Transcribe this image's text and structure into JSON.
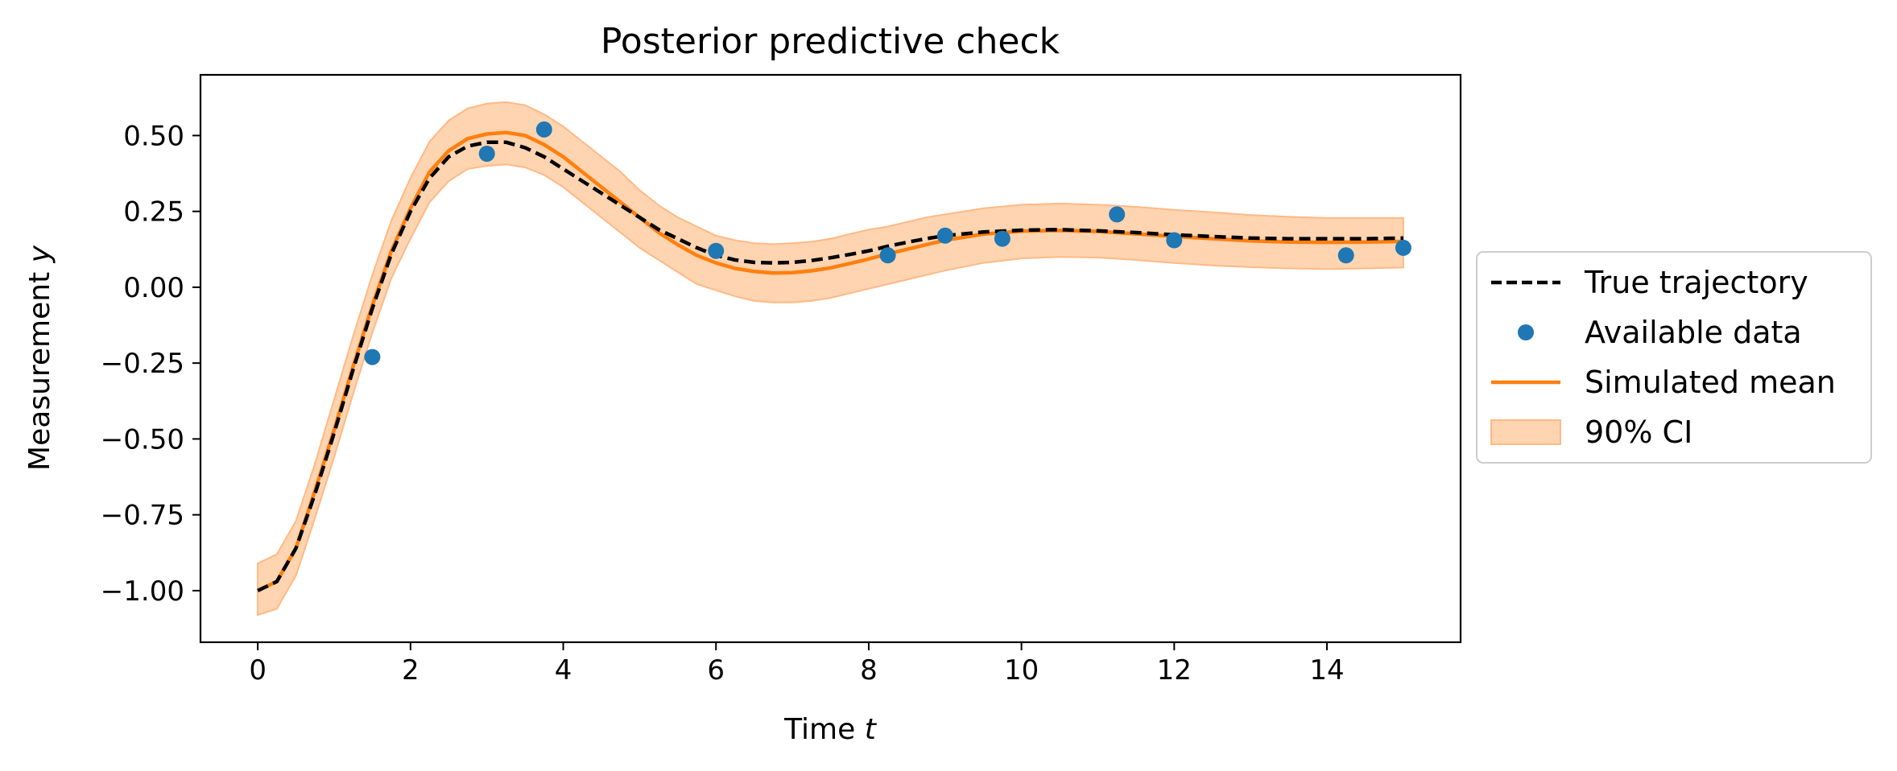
{
  "chart_data": {
    "type": "line",
    "title": "Posterior predictive check",
    "xlabel": {
      "text": "Time ",
      "var": "t"
    },
    "ylabel": {
      "text": "Measurement ",
      "var": "y"
    },
    "xlim": [
      -0.75,
      15.75
    ],
    "ylim": [
      -1.17,
      0.7
    ],
    "xticks": [
      0,
      2,
      4,
      6,
      8,
      10,
      12,
      14
    ],
    "xtick_labels": [
      "0",
      "2",
      "4",
      "6",
      "8",
      "10",
      "12",
      "14"
    ],
    "yticks": [
      0.5,
      0.25,
      0.0,
      -0.25,
      -0.5,
      -0.75,
      -1.0
    ],
    "ytick_labels": [
      "0.50",
      "0.25",
      "0.00",
      "−0.25",
      "−0.50",
      "−0.75",
      "−1.00"
    ],
    "grid": false,
    "legend_position": "right-outside",
    "colors": {
      "true": "#000000",
      "data": "#1f77b4",
      "mean": "#ff7f0e",
      "band_fill": "#ffd4b0",
      "band_edge": "#ffb985"
    },
    "series": [
      {
        "name": "True trajectory",
        "kind": "dashed-line",
        "x": [
          0,
          0.25,
          0.5,
          0.75,
          1,
          1.25,
          1.5,
          1.75,
          2,
          2.25,
          2.5,
          2.75,
          3,
          3.25,
          3.5,
          3.75,
          4,
          4.25,
          4.5,
          4.75,
          5,
          5.25,
          5.5,
          5.75,
          6,
          6.25,
          6.5,
          6.75,
          7,
          7.25,
          7.5,
          7.75,
          8,
          8.25,
          8.5,
          8.75,
          9,
          9.5,
          10,
          10.5,
          11,
          11.5,
          12,
          12.5,
          13,
          13.5,
          14,
          14.5,
          15
        ],
        "y": [
          -1.0,
          -0.97,
          -0.86,
          -0.68,
          -0.48,
          -0.27,
          -0.07,
          0.11,
          0.25,
          0.36,
          0.43,
          0.465,
          0.478,
          0.478,
          0.46,
          0.43,
          0.39,
          0.35,
          0.31,
          0.27,
          0.23,
          0.19,
          0.16,
          0.13,
          0.105,
          0.09,
          0.082,
          0.08,
          0.082,
          0.088,
          0.097,
          0.108,
          0.12,
          0.135,
          0.148,
          0.16,
          0.17,
          0.182,
          0.188,
          0.19,
          0.186,
          0.18,
          0.173,
          0.167,
          0.162,
          0.16,
          0.16,
          0.16,
          0.162
        ]
      },
      {
        "name": "Available data",
        "kind": "points",
        "x": [
          1.5,
          3.0,
          3.75,
          6.0,
          8.25,
          9.0,
          9.75,
          11.25,
          12.0,
          14.25,
          15.0
        ],
        "y": [
          -0.23,
          0.44,
          0.52,
          0.12,
          0.105,
          0.17,
          0.16,
          0.24,
          0.155,
          0.105,
          0.13
        ]
      },
      {
        "name": "Simulated mean",
        "kind": "line",
        "x": [
          0,
          0.25,
          0.5,
          0.75,
          1,
          1.25,
          1.5,
          1.75,
          2,
          2.25,
          2.5,
          2.75,
          3,
          3.25,
          3.5,
          3.75,
          4,
          4.25,
          4.5,
          4.75,
          5,
          5.25,
          5.5,
          5.75,
          6,
          6.25,
          6.5,
          6.75,
          7,
          7.25,
          7.5,
          7.75,
          8,
          8.25,
          8.5,
          8.75,
          9,
          9.5,
          10,
          10.5,
          11,
          11.5,
          12,
          12.5,
          13,
          13.5,
          14,
          14.5,
          15
        ],
        "y": [
          -1.0,
          -0.97,
          -0.86,
          -0.67,
          -0.47,
          -0.26,
          -0.06,
          0.12,
          0.26,
          0.38,
          0.45,
          0.49,
          0.505,
          0.51,
          0.5,
          0.47,
          0.43,
          0.38,
          0.33,
          0.28,
          0.23,
          0.18,
          0.14,
          0.105,
          0.08,
          0.062,
          0.052,
          0.047,
          0.048,
          0.054,
          0.064,
          0.078,
          0.093,
          0.11,
          0.125,
          0.14,
          0.155,
          0.175,
          0.185,
          0.187,
          0.184,
          0.176,
          0.168,
          0.16,
          0.153,
          0.149,
          0.148,
          0.149,
          0.151
        ]
      },
      {
        "name": "90% CI",
        "kind": "band",
        "x": [
          0,
          0.25,
          0.5,
          0.75,
          1,
          1.25,
          1.5,
          1.75,
          2,
          2.25,
          2.5,
          2.75,
          3,
          3.25,
          3.5,
          3.75,
          4,
          4.25,
          4.5,
          4.75,
          5,
          5.25,
          5.5,
          5.75,
          6,
          6.25,
          6.5,
          6.75,
          7,
          7.25,
          7.5,
          7.75,
          8,
          8.25,
          8.5,
          8.75,
          9,
          9.5,
          10,
          10.5,
          11,
          11.5,
          12,
          12.5,
          13,
          13.5,
          14,
          14.5,
          15
        ],
        "upper": [
          -0.91,
          -0.88,
          -0.77,
          -0.58,
          -0.37,
          -0.16,
          0.04,
          0.22,
          0.36,
          0.48,
          0.55,
          0.59,
          0.605,
          0.61,
          0.6,
          0.57,
          0.53,
          0.48,
          0.43,
          0.38,
          0.32,
          0.27,
          0.23,
          0.2,
          0.17,
          0.155,
          0.145,
          0.142,
          0.145,
          0.15,
          0.16,
          0.175,
          0.19,
          0.2,
          0.215,
          0.23,
          0.24,
          0.26,
          0.272,
          0.276,
          0.272,
          0.265,
          0.255,
          0.247,
          0.238,
          0.232,
          0.228,
          0.228,
          0.228
        ],
        "lower": [
          -1.08,
          -1.06,
          -0.95,
          -0.76,
          -0.56,
          -0.35,
          -0.15,
          0.03,
          0.16,
          0.28,
          0.35,
          0.39,
          0.4,
          0.405,
          0.395,
          0.37,
          0.33,
          0.28,
          0.23,
          0.18,
          0.13,
          0.09,
          0.05,
          0.01,
          -0.01,
          -0.03,
          -0.045,
          -0.05,
          -0.05,
          -0.045,
          -0.035,
          -0.02,
          -0.005,
          0.01,
          0.025,
          0.04,
          0.055,
          0.08,
          0.095,
          0.1,
          0.098,
          0.09,
          0.08,
          0.072,
          0.066,
          0.062,
          0.06,
          0.062,
          0.065
        ]
      }
    ],
    "legend": [
      {
        "label": "True trajectory",
        "marker": "dashed-line"
      },
      {
        "label": "Available data",
        "marker": "dot"
      },
      {
        "label": "Simulated mean",
        "marker": "line"
      },
      {
        "label": "90% CI",
        "marker": "patch"
      }
    ]
  }
}
